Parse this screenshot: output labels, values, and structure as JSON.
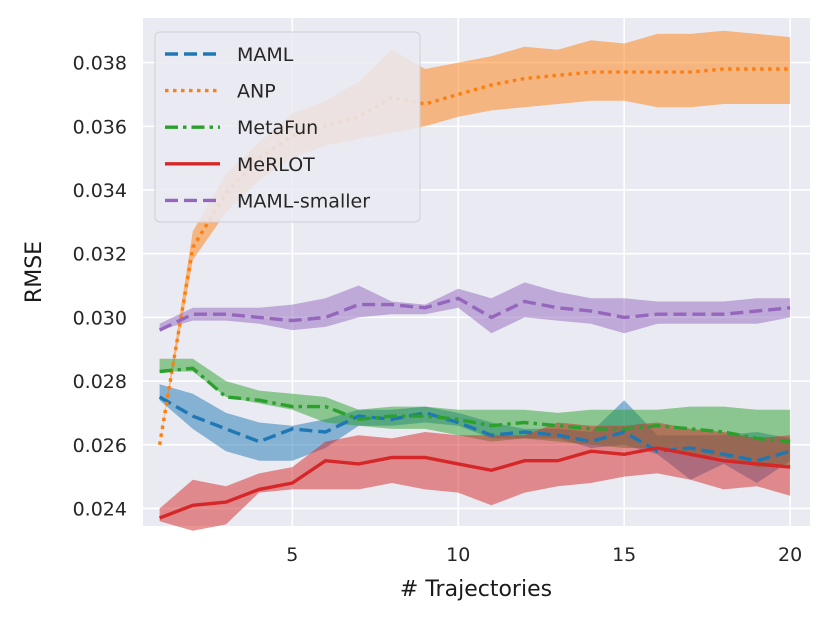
{
  "chart_data": {
    "type": "line",
    "title": "",
    "xlabel": "# Trajectories",
    "ylabel": "RMSE",
    "xlim": [
      0.5,
      20.6
    ],
    "ylim": [
      0.02345,
      0.0394
    ],
    "xticks": [
      5,
      10,
      15,
      20
    ],
    "yticks": [
      0.024,
      0.026,
      0.028,
      0.03,
      0.032,
      0.034,
      0.036,
      0.038
    ],
    "ytick_labels": [
      "0.024",
      "0.026",
      "0.028",
      "0.030",
      "0.032",
      "0.034",
      "0.036",
      "0.038"
    ],
    "xtick_labels": [
      "5",
      "10",
      "15",
      "20"
    ],
    "grid": true,
    "legend_position": "top-left",
    "x": [
      1,
      2,
      3,
      4,
      5,
      6,
      7,
      8,
      9,
      10,
      11,
      12,
      13,
      14,
      15,
      16,
      17,
      18,
      19,
      20
    ],
    "series": [
      {
        "name": "MAML",
        "color": "#1f77b4",
        "dash": "dashed",
        "values": [
          0.0275,
          0.0269,
          0.0265,
          0.0261,
          0.0265,
          0.0264,
          0.0269,
          0.0268,
          0.027,
          0.0267,
          0.0263,
          0.0264,
          0.0263,
          0.0261,
          0.0264,
          0.0258,
          0.0259,
          0.0257,
          0.0255,
          0.0258
        ],
        "lower": [
          0.0274,
          0.0265,
          0.0258,
          0.0255,
          0.0255,
          0.0259,
          0.0266,
          0.0266,
          0.0267,
          0.0266,
          0.0262,
          0.0262,
          0.0262,
          0.0259,
          0.026,
          0.0257,
          0.0249,
          0.0254,
          0.0248,
          0.0255
        ],
        "upper": [
          0.0279,
          0.0276,
          0.027,
          0.0267,
          0.0266,
          0.0268,
          0.0271,
          0.0271,
          0.0272,
          0.027,
          0.0267,
          0.0265,
          0.0265,
          0.0264,
          0.0274,
          0.0263,
          0.0263,
          0.0263,
          0.0264,
          0.0262
        ]
      },
      {
        "name": "ANP",
        "color": "#ff7f0e",
        "dash": "dotted",
        "values": [
          0.026,
          0.0322,
          0.0339,
          0.035,
          0.0357,
          0.036,
          0.0363,
          0.0369,
          0.0367,
          0.037,
          0.0373,
          0.0375,
          0.0376,
          0.0377,
          0.0377,
          0.0377,
          0.0377,
          0.0378,
          0.0378,
          0.0378
        ],
        "lower": [
          0.026,
          0.0318,
          0.0333,
          0.0343,
          0.035,
          0.0354,
          0.0356,
          0.0358,
          0.036,
          0.0363,
          0.0365,
          0.0366,
          0.0367,
          0.0368,
          0.0368,
          0.0366,
          0.0366,
          0.0367,
          0.0367,
          0.0367
        ],
        "upper": [
          0.026,
          0.0327,
          0.0345,
          0.0355,
          0.0364,
          0.0368,
          0.0374,
          0.0384,
          0.0378,
          0.038,
          0.0382,
          0.0385,
          0.0384,
          0.0387,
          0.0386,
          0.0389,
          0.0389,
          0.039,
          0.0389,
          0.0388
        ]
      },
      {
        "name": "MetaFun",
        "color": "#2ca02c",
        "dash": "dashdot",
        "values": [
          0.0283,
          0.0284,
          0.0275,
          0.0274,
          0.0272,
          0.0272,
          0.0268,
          0.0269,
          0.0269,
          0.0268,
          0.0266,
          0.0267,
          0.0266,
          0.0265,
          0.0265,
          0.0266,
          0.0265,
          0.0264,
          0.0262,
          0.0261
        ],
        "lower": [
          0.0283,
          0.0283,
          0.0275,
          0.0273,
          0.0271,
          0.0267,
          0.0266,
          0.0265,
          0.0265,
          0.0263,
          0.0261,
          0.0262,
          0.0261,
          0.026,
          0.0259,
          0.0259,
          0.0257,
          0.0256,
          0.0253,
          0.0253
        ],
        "upper": [
          0.0287,
          0.0287,
          0.028,
          0.0277,
          0.0276,
          0.0275,
          0.0271,
          0.0272,
          0.0272,
          0.0271,
          0.0271,
          0.0271,
          0.027,
          0.0271,
          0.0271,
          0.0271,
          0.0272,
          0.0272,
          0.0271,
          0.0271
        ]
      },
      {
        "name": "MeRLOT",
        "color": "#d62728",
        "dash": "solid",
        "values": [
          0.0237,
          0.0241,
          0.0242,
          0.0246,
          0.0248,
          0.0255,
          0.0254,
          0.0256,
          0.0256,
          0.0254,
          0.0252,
          0.0255,
          0.0255,
          0.0258,
          0.0257,
          0.0259,
          0.0257,
          0.0255,
          0.0254,
          0.0253
        ],
        "lower": [
          0.0236,
          0.0233,
          0.0235,
          0.0245,
          0.0246,
          0.0246,
          0.0246,
          0.0248,
          0.0246,
          0.0245,
          0.0241,
          0.0245,
          0.0247,
          0.0248,
          0.025,
          0.0251,
          0.0249,
          0.0246,
          0.0247,
          0.0244
        ],
        "upper": [
          0.024,
          0.0249,
          0.0247,
          0.0251,
          0.0253,
          0.0261,
          0.0263,
          0.0262,
          0.0264,
          0.0263,
          0.0263,
          0.0263,
          0.0267,
          0.0266,
          0.0266,
          0.0267,
          0.0265,
          0.0264,
          0.0262,
          0.0263
        ]
      },
      {
        "name": "MAML-smaller",
        "color": "#9467bd",
        "dash": "dashed",
        "values": [
          0.0296,
          0.0301,
          0.0301,
          0.03,
          0.0299,
          0.03,
          0.0304,
          0.0304,
          0.0303,
          0.0306,
          0.03,
          0.0305,
          0.0303,
          0.0302,
          0.03,
          0.0301,
          0.0301,
          0.0301,
          0.0302,
          0.0303
        ],
        "lower": [
          0.0296,
          0.0299,
          0.0299,
          0.0298,
          0.0296,
          0.0297,
          0.03,
          0.0301,
          0.0301,
          0.0303,
          0.0295,
          0.03,
          0.0299,
          0.0298,
          0.0295,
          0.0298,
          0.0298,
          0.0298,
          0.0298,
          0.03
        ],
        "upper": [
          0.0298,
          0.0303,
          0.0303,
          0.0303,
          0.0304,
          0.0306,
          0.031,
          0.0305,
          0.0304,
          0.0309,
          0.0306,
          0.0311,
          0.0308,
          0.0306,
          0.0306,
          0.0305,
          0.0305,
          0.0305,
          0.0306,
          0.0306
        ]
      }
    ]
  }
}
